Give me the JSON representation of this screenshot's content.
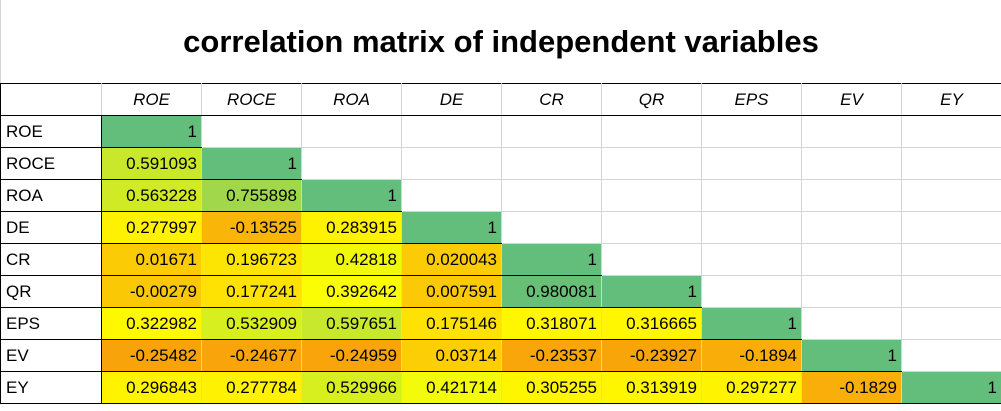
{
  "title": "correlation matrix of independent variables",
  "columns": [
    "ROE",
    "ROCE",
    "ROA",
    "DE",
    "CR",
    "QR",
    "EPS",
    "EV",
    "EY"
  ],
  "rows": [
    {
      "label": "ROE",
      "values": [
        "1"
      ]
    },
    {
      "label": "ROCE",
      "values": [
        "0.591093",
        "1"
      ]
    },
    {
      "label": "ROA",
      "values": [
        "0.563228",
        "0.755898",
        "1"
      ]
    },
    {
      "label": "DE",
      "values": [
        "0.277997",
        "-0.13525",
        "0.283915",
        "1"
      ]
    },
    {
      "label": "CR",
      "values": [
        "0.01671",
        "0.196723",
        "0.42818",
        "0.020043",
        "1"
      ]
    },
    {
      "label": "QR",
      "values": [
        "-0.00279",
        "0.177241",
        "0.392642",
        "0.007591",
        "0.980081",
        "1"
      ]
    },
    {
      "label": "EPS",
      "values": [
        "0.322982",
        "0.532909",
        "0.597651",
        "0.175146",
        "0.318071",
        "0.316665",
        "1"
      ]
    },
    {
      "label": "EV",
      "values": [
        "-0.25482",
        "-0.24677",
        "-0.24959",
        "0.03714",
        "-0.23537",
        "-0.23927",
        "-0.1894",
        "1"
      ]
    },
    {
      "label": "EY",
      "values": [
        "0.296843",
        "0.277784",
        "0.529966",
        "0.421714",
        "0.305255",
        "0.313919",
        "0.297277",
        "-0.1829",
        "1"
      ]
    }
  ],
  "color_scale": {
    "low": "#f8a30a",
    "mid": "#ffff00",
    "high": "#63be7b",
    "min": -0.25482,
    "max": 1
  }
}
